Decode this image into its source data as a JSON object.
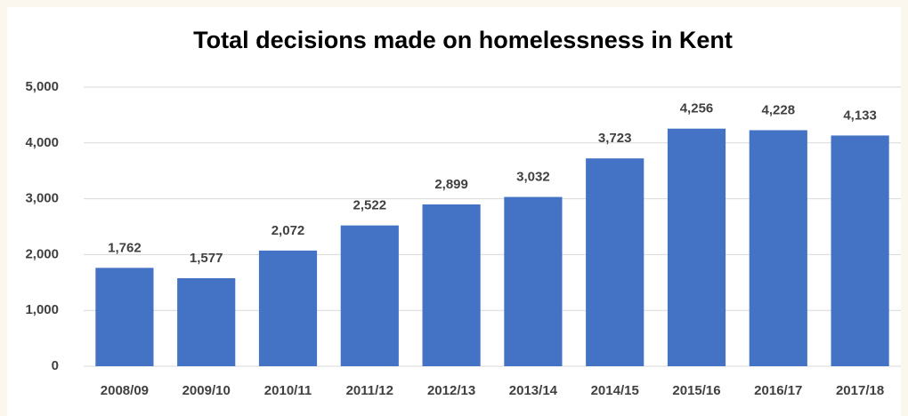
{
  "chart_data": {
    "type": "bar",
    "title": "Total decisions made on homelessness in Kent",
    "categories": [
      "2008/09",
      "2009/10",
      "2010/11",
      "2011/12",
      "2012/13",
      "2013/14",
      "2014/15",
      "2015/16",
      "2016/17",
      "2017/18"
    ],
    "values": [
      1762,
      1577,
      2072,
      2522,
      2899,
      3032,
      3723,
      4256,
      4228,
      4133
    ],
    "value_labels": [
      "1,762",
      "1,577",
      "2,072",
      "2,522",
      "2,899",
      "3,032",
      "3,723",
      "4,256",
      "4,228",
      "4,133"
    ],
    "color": "#4472c4",
    "ylim": [
      0,
      5000
    ],
    "yticks": [
      0,
      {
        "value": 1000,
        "label": "1,000"
      },
      {
        "value": 2000,
        "label": "2,000"
      },
      {
        "value": 3000,
        "label": "3,000"
      },
      {
        "value": 4000,
        "label": "4,000"
      },
      {
        "value": 5000,
        "label": "5,000"
      }
    ],
    "grid": true
  }
}
